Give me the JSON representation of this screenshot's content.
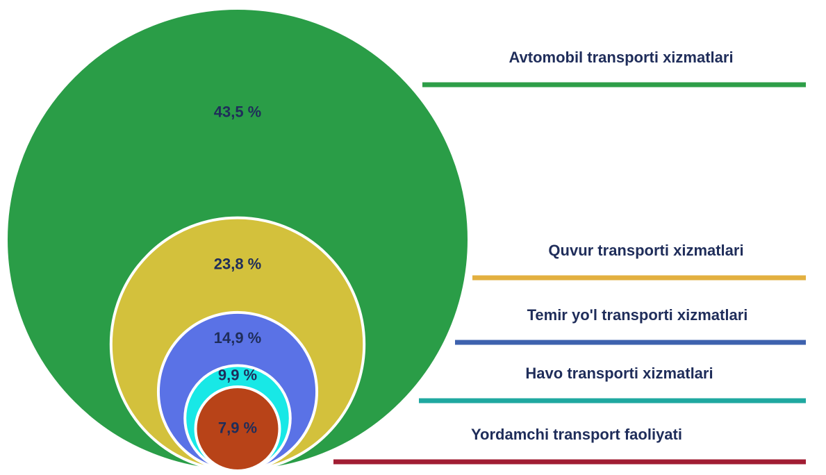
{
  "chart_data": {
    "type": "nested_circles",
    "categories": [
      "Avtomobil transporti xizmatlari",
      "Quvur transporti xizmatlari",
      "Temir yo'l transporti xizmatlari",
      "Havo transporti xizmatlari",
      "Yordamchi transport faoliyati"
    ],
    "values": [
      43.5,
      23.8,
      14.9,
      9.9,
      7.9
    ],
    "value_labels": [
      "43,5 %",
      "23,8 %",
      "14,9 %",
      "9,9 %",
      "7,9 %"
    ],
    "colors": [
      "#2a9d47",
      "#d3c13c",
      "#5a72e6",
      "#18e8e6",
      "#b84318"
    ],
    "line_colors": [
      "#2e9e48",
      "#e3b040",
      "#3e62ae",
      "#1fa8a0",
      "#a11d33"
    ]
  }
}
